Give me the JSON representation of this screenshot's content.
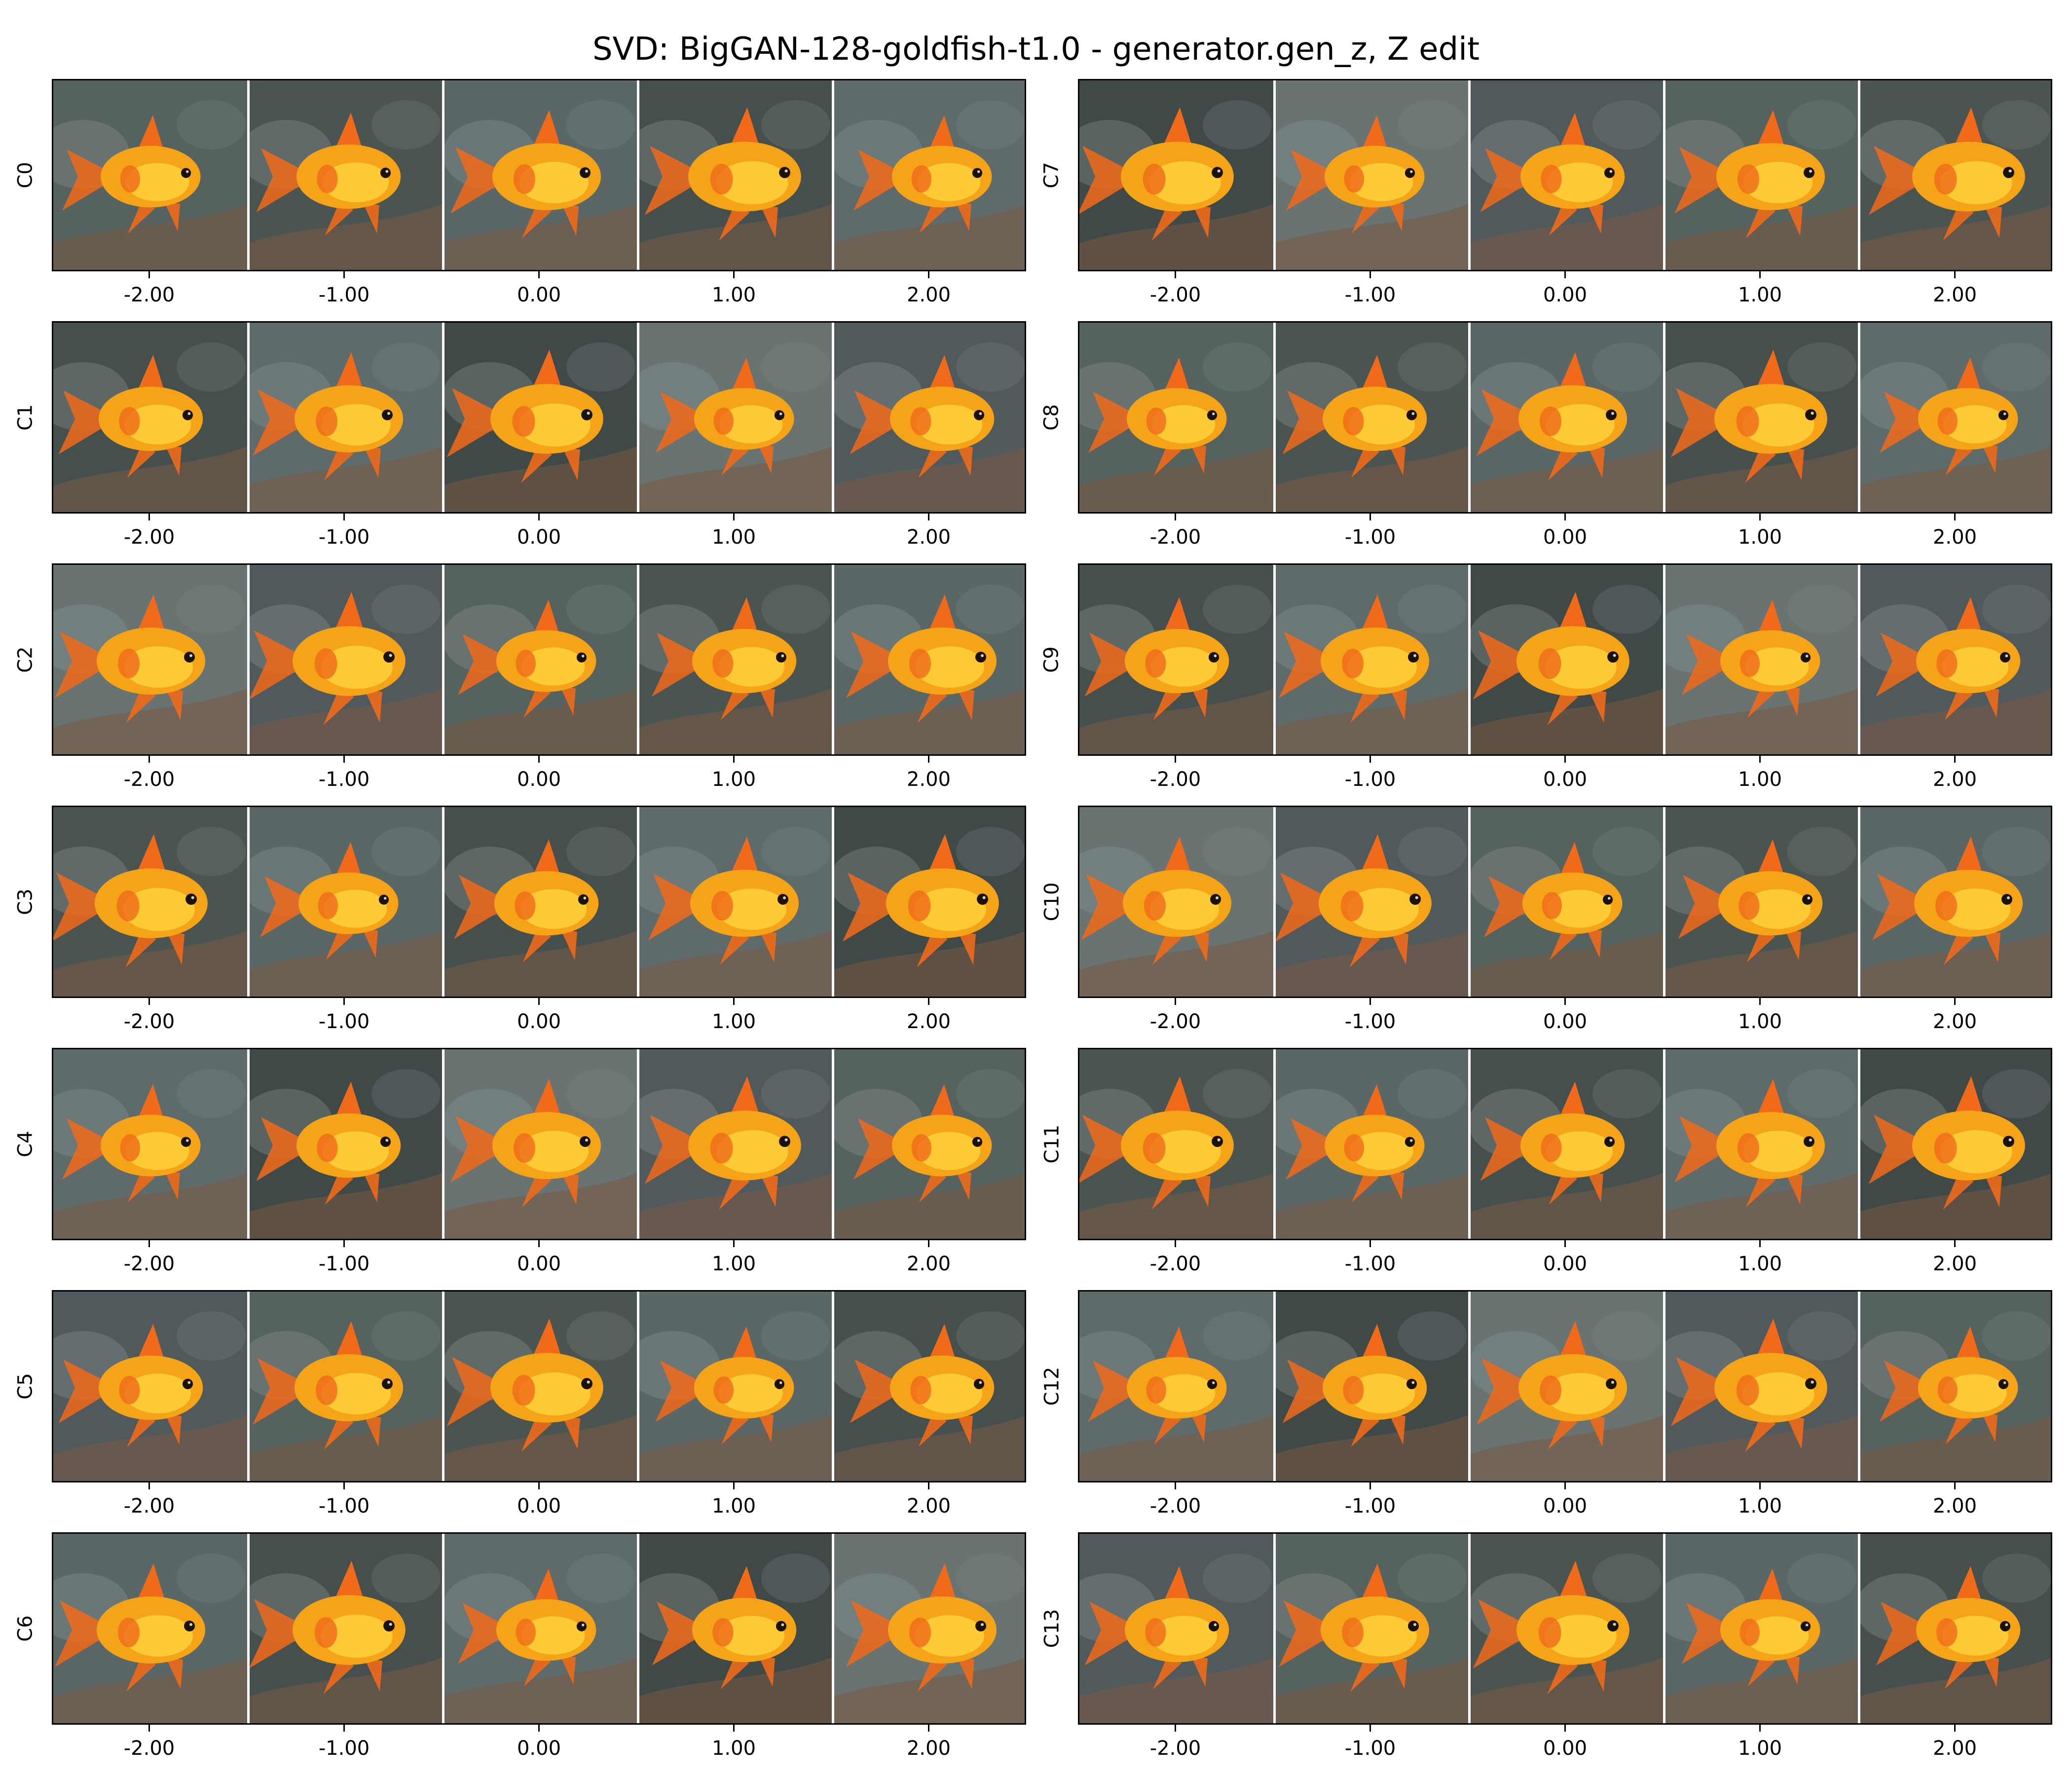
{
  "title": "SVD: BigGAN-128-goldfish-t1.0 - generator.gen_z, Z edit",
  "chart_data": {
    "type": "image-grid",
    "title": "SVD: BigGAN-128-goldfish-t1.0 - generator.gen_z, Z edit",
    "x_ticks": [
      "-2.00",
      "-1.00",
      "0.00",
      "1.00",
      "2.00"
    ],
    "x_values": [
      -2,
      -1,
      0,
      1,
      2
    ],
    "components": [
      "C0",
      "C1",
      "C2",
      "C3",
      "C4",
      "C5",
      "C6",
      "C7",
      "C8",
      "C9",
      "C10",
      "C11",
      "C12",
      "C13"
    ],
    "grid": false,
    "colors": {
      "fish_body": "#f5a418",
      "fish_belly": "#ffd23a",
      "fish_fin": "#f06a1a",
      "background": "#4b5656",
      "rock": "#7a5a44",
      "separator": "#ffffff"
    }
  }
}
